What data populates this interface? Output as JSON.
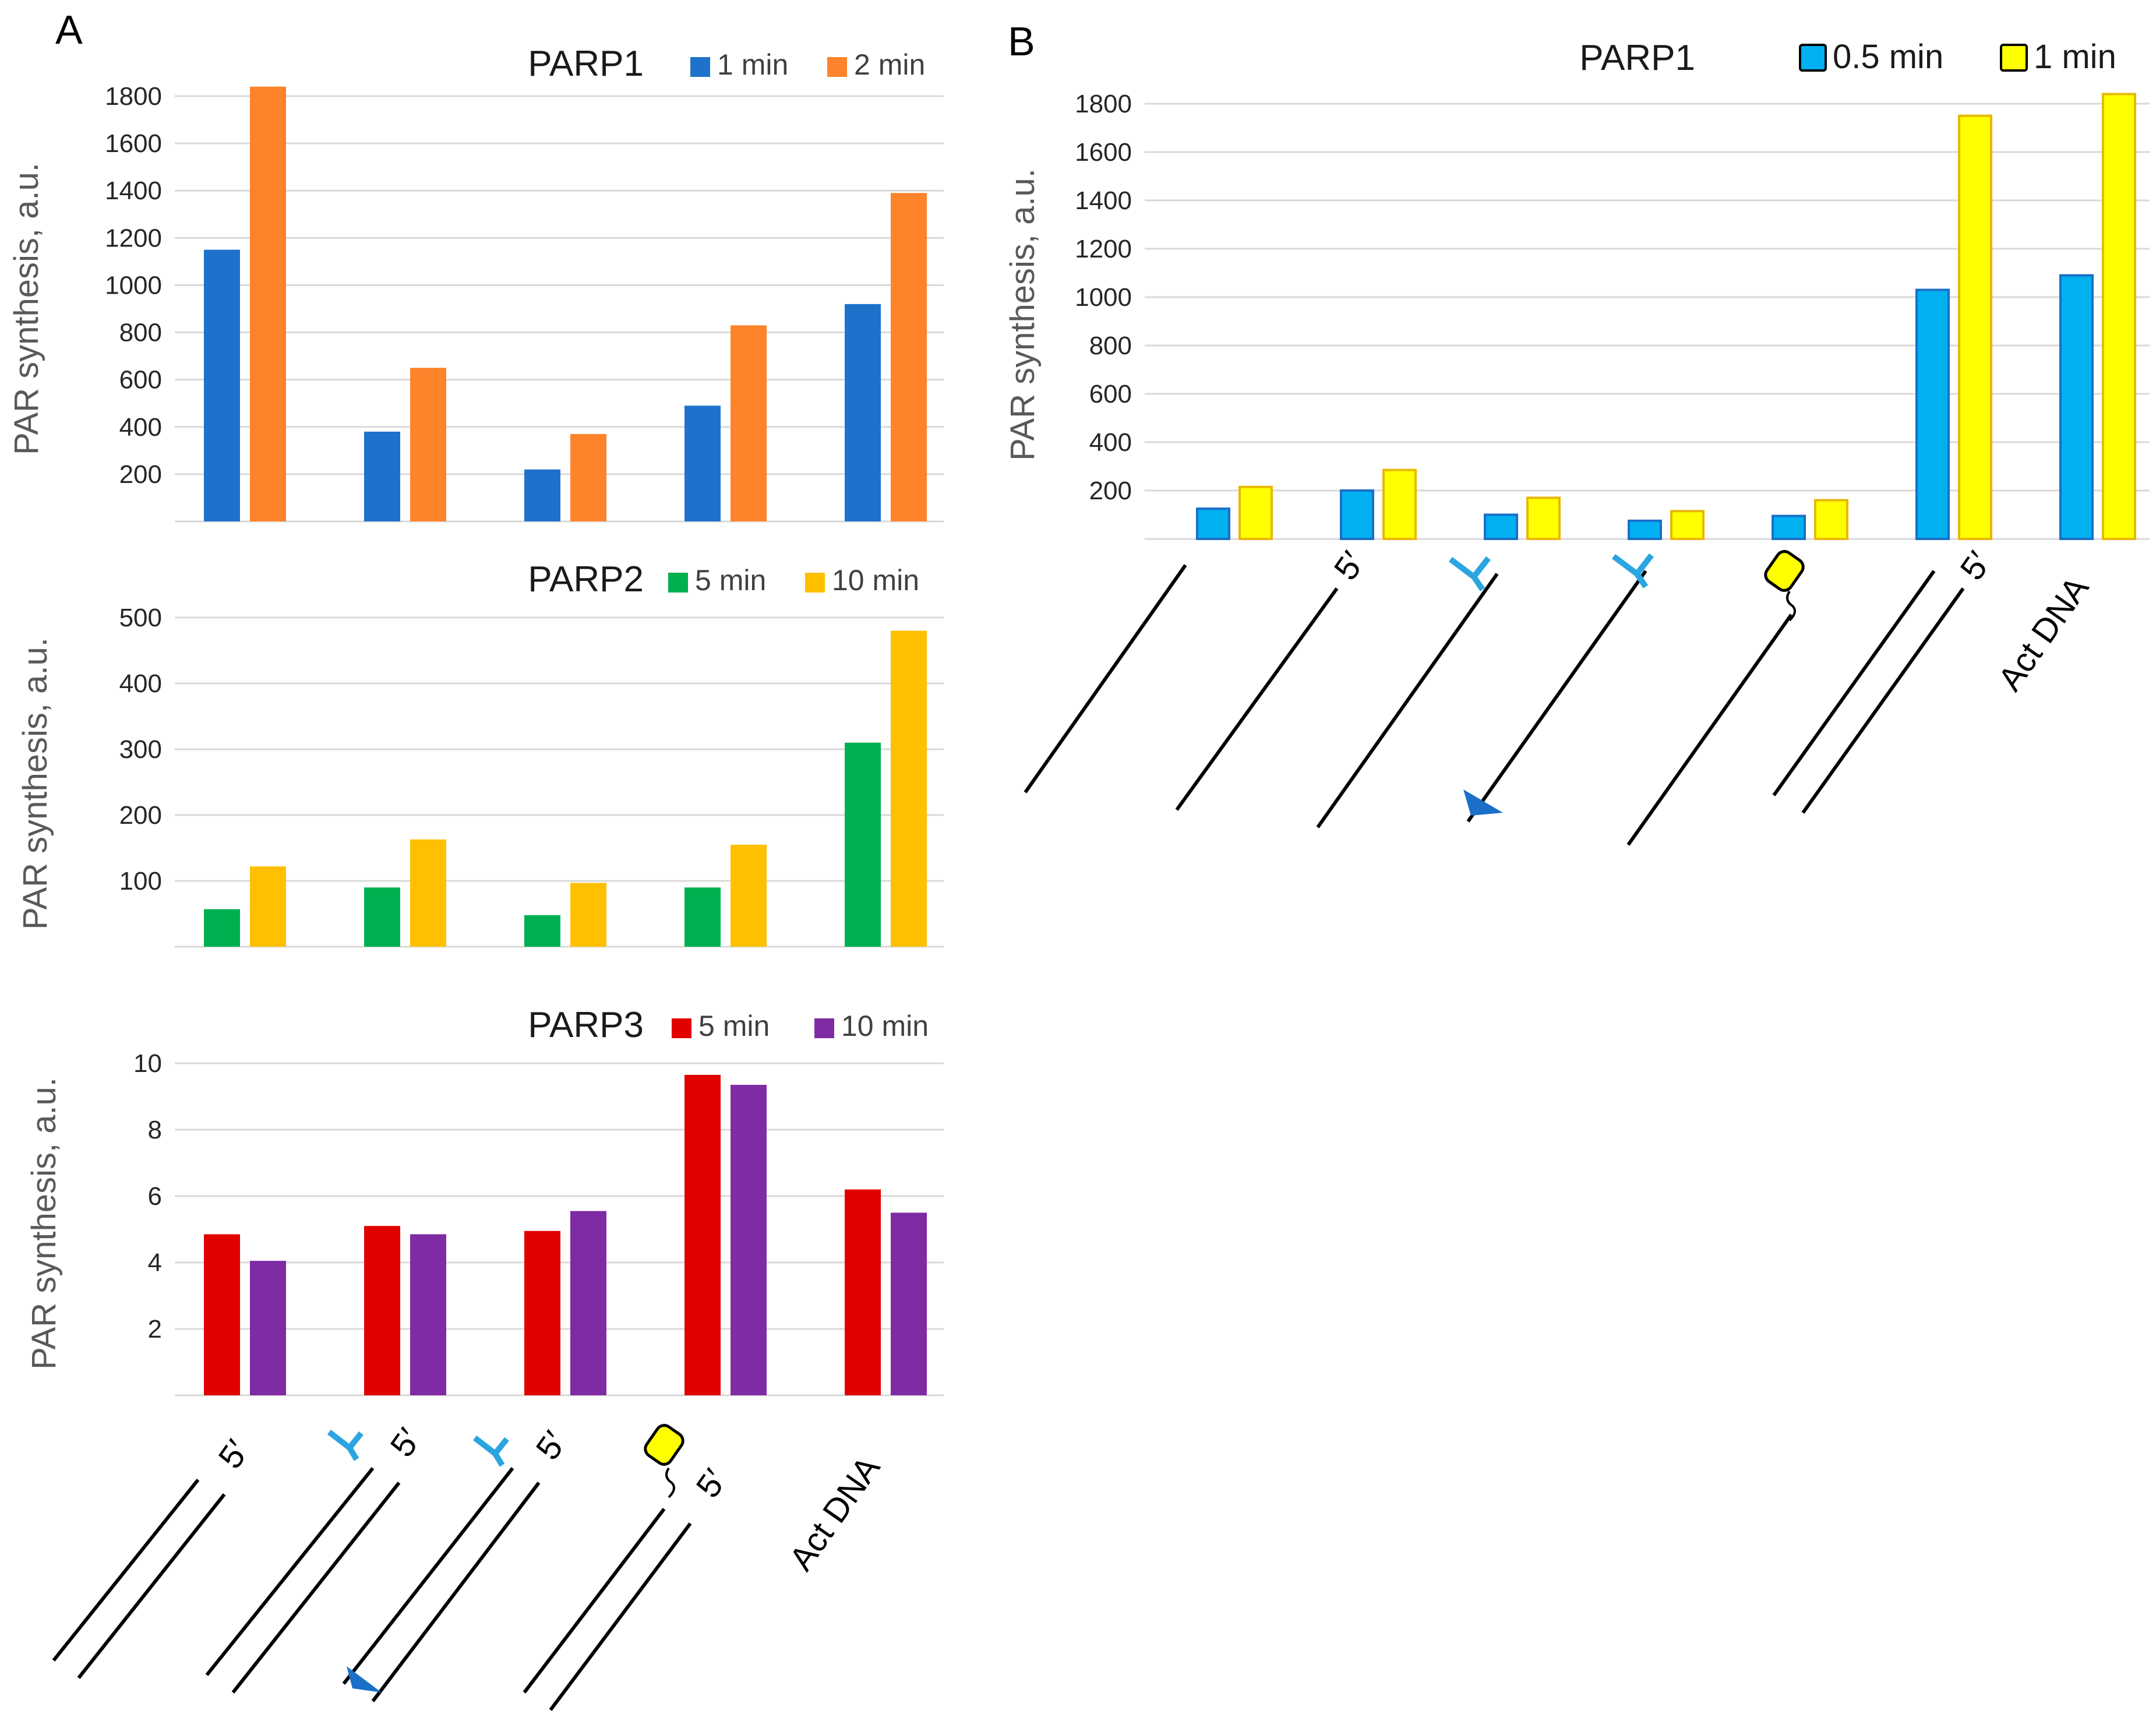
{
  "panels": [
    "A",
    "B"
  ],
  "substrate_labels": {
    "five_prime": "5′",
    "act_dna": "Act DNA"
  },
  "chart_data": [
    {
      "id": "A-PARP1",
      "type": "bar",
      "title": "PARP1",
      "ylabel": "PAR synthesis, a.u.",
      "ylim": [
        0,
        1800
      ],
      "yticks": [
        200,
        400,
        600,
        800,
        1000,
        1200,
        1400,
        1600,
        1800
      ],
      "categories": [
        "5′ overhang",
        "flap 5′",
        "flap 5′ (3′ mark)",
        "bulky adduct 5′",
        "Act DNA"
      ],
      "series": [
        {
          "name": "1 min",
          "color": "#1f72cc",
          "values": [
            1150,
            380,
            220,
            490,
            920
          ]
        },
        {
          "name": "2 min",
          "color": "#ff832a",
          "values": [
            1840,
            650,
            370,
            830,
            1390
          ]
        }
      ]
    },
    {
      "id": "A-PARP2",
      "type": "bar",
      "title": "PARP2",
      "ylabel": "PAR synthesis, a.u.",
      "ylim": [
        0,
        500
      ],
      "yticks": [
        100,
        200,
        300,
        400,
        500
      ],
      "categories": [
        "5′ overhang",
        "flap 5′",
        "flap 5′ (3′ mark)",
        "bulky adduct 5′",
        "Act DNA"
      ],
      "series": [
        {
          "name": "5 min",
          "color": "#00b050",
          "values": [
            57,
            90,
            48,
            90,
            310
          ]
        },
        {
          "name": "10 min",
          "color": "#ffc000",
          "values": [
            122,
            163,
            97,
            155,
            480
          ]
        }
      ]
    },
    {
      "id": "A-PARP3",
      "type": "bar",
      "title": "PARP3",
      "ylabel": "PAR synthesis, a.u.",
      "ylim": [
        0,
        10
      ],
      "yticks": [
        2,
        4,
        6,
        8,
        10
      ],
      "categories": [
        "5′ overhang",
        "flap 5′",
        "flap 5′ (3′ mark)",
        "bulky adduct 5′",
        "Act DNA"
      ],
      "series": [
        {
          "name": "5 min",
          "color": "#e00000",
          "values": [
            4.85,
            5.1,
            4.95,
            9.65,
            6.2
          ]
        },
        {
          "name": "10 min",
          "color": "#7f2ba4",
          "values": [
            4.05,
            4.85,
            5.55,
            9.35,
            5.5
          ]
        }
      ]
    },
    {
      "id": "B-PARP1",
      "type": "bar",
      "title": "PARP1",
      "ylabel": "PAR synthesis, a.u.",
      "ylim": [
        0,
        1800
      ],
      "yticks": [
        200,
        400,
        600,
        800,
        1000,
        1200,
        1400,
        1600,
        1800
      ],
      "categories": [
        "ss",
        "ss 5′",
        "ss flap",
        "ss flap (3′ mark)",
        "ss bulky adduct",
        "ds 5′",
        "Act DNA"
      ],
      "series": [
        {
          "name": "0.5 min",
          "color": "#00b0f0",
          "values": [
            125,
            200,
            100,
            75,
            95,
            1030,
            1090
          ]
        },
        {
          "name": "1 min",
          "color": "#ffff00",
          "values": [
            215,
            285,
            170,
            115,
            160,
            1750,
            1840
          ]
        }
      ]
    }
  ]
}
